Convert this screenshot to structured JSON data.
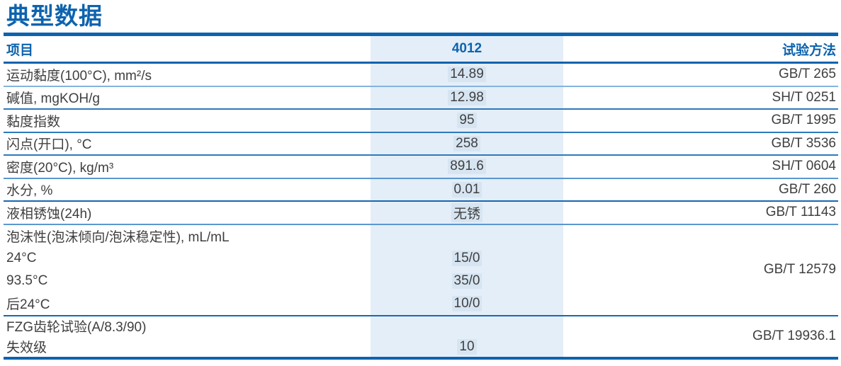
{
  "page_title": "典型数据",
  "colors": {
    "accent_blue": "#0d63ae",
    "value_column_bg": "#e4eef8",
    "body_text": "#3f3f3f",
    "separator_light": "#85b3dd",
    "separator_medium": "#2e79bb",
    "separator_dark": "#1668b1"
  },
  "table": {
    "columns": [
      {
        "label": "项目"
      },
      {
        "label": "4012"
      },
      {
        "label": "试验方法"
      }
    ],
    "rows": [
      {
        "item": "运动黏度(100°C), mm²/s",
        "value": "14.89",
        "method": "GB/T 265"
      },
      {
        "item": "碱值, mgKOH/g",
        "value": "12.98",
        "method": "SH/T 0251"
      },
      {
        "item": "黏度指数",
        "value": "95",
        "method": "GB/T 1995"
      },
      {
        "item": "闪点(开口), °C",
        "value": "258",
        "method": "GB/T 3536"
      },
      {
        "item": "密度(20°C), kg/m³",
        "value": "891.6",
        "method": "SH/T 0604"
      },
      {
        "item": "水分, %",
        "value": "0.01",
        "method": "GB/T 260"
      },
      {
        "item": "液相锈蚀(24h)",
        "value": "无锈",
        "method": "GB/T 11143"
      },
      {
        "item_lines": [
          "泡沫性(泡沫倾向/泡沫稳定性), mL/mL",
          "24°C",
          "93.5°C",
          "后24°C"
        ],
        "values": [
          "15/0",
          "35/0",
          "10/0"
        ],
        "method": "GB/T 12579"
      },
      {
        "item_lines": [
          "FZG齿轮试验(A/8.3/90)",
          "失效级"
        ],
        "values": [
          "10"
        ],
        "method": "GB/T 19936.1"
      }
    ]
  }
}
